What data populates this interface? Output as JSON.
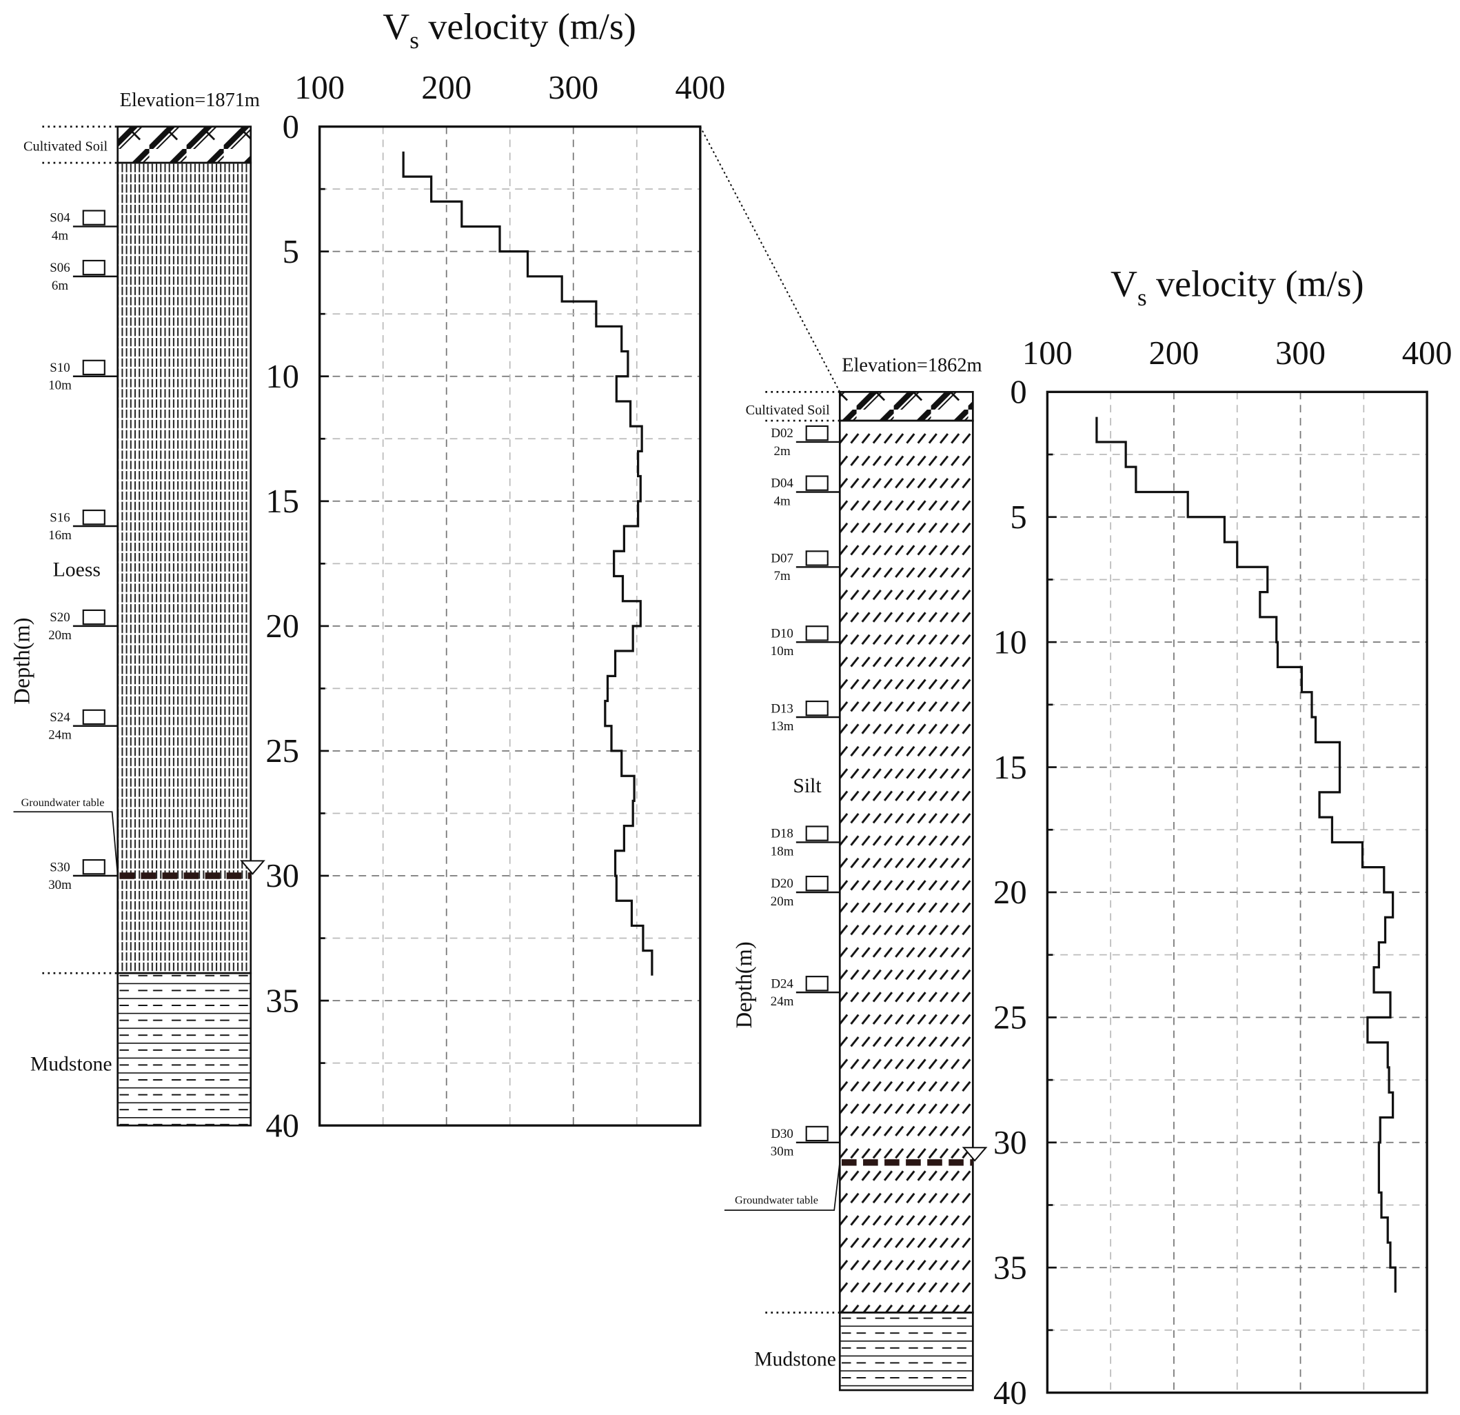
{
  "chart_data": [
    {
      "type": "line",
      "title": {
        "main": "V",
        "sub": "s",
        "rest": " velocity (m/s)"
      },
      "xlim": [
        100,
        400
      ],
      "xticks": [
        "100",
        "200",
        "300",
        "400"
      ],
      "ylim": [
        0,
        40
      ],
      "yticks": [
        "0",
        "5",
        "10",
        "15",
        "20",
        "25",
        "30",
        "35",
        "40"
      ],
      "ylabel": "Depth(m)",
      "grid": true,
      "y_inverted": true,
      "elevation": "Elevation=1871m",
      "groundwater_label": "Groundwater table",
      "groundwater_depth": 30,
      "layers": [
        {
          "name": "Cultivated Soil",
          "pattern": "cultivated",
          "top": 0,
          "bottom": 1.45
        },
        {
          "name": "Loess",
          "pattern": "loess",
          "top": 1.45,
          "bottom": 33.9
        },
        {
          "name": "Mudstone",
          "pattern": "mudstone",
          "top": 33.9,
          "bottom": 40
        }
      ],
      "samples": [
        {
          "id": "S04",
          "depth_label": "4m",
          "depth": 4
        },
        {
          "id": "S06",
          "depth_label": "6m",
          "depth": 6
        },
        {
          "id": "S10",
          "depth_label": "10m",
          "depth": 10
        },
        {
          "id": "S16",
          "depth_label": "16m",
          "depth": 16
        },
        {
          "id": "S20",
          "depth_label": "20m",
          "depth": 20
        },
        {
          "id": "S24",
          "depth_label": "24m",
          "depth": 24
        },
        {
          "id": "S30",
          "depth_label": "30m",
          "depth": 30
        }
      ],
      "segments": [
        {
          "from": 1,
          "to": 2,
          "v": 166
        },
        {
          "from": 2,
          "to": 3,
          "v": 188
        },
        {
          "from": 3,
          "to": 4,
          "v": 212
        },
        {
          "from": 4,
          "to": 5,
          "v": 242
        },
        {
          "from": 5,
          "to": 6,
          "v": 264
        },
        {
          "from": 6,
          "to": 7,
          "v": 291
        },
        {
          "from": 7,
          "to": 8,
          "v": 318
        },
        {
          "from": 8,
          "to": 9,
          "v": 338
        },
        {
          "from": 9,
          "to": 10,
          "v": 343
        },
        {
          "from": 10,
          "to": 11,
          "v": 334
        },
        {
          "from": 11,
          "to": 12,
          "v": 345
        },
        {
          "from": 12,
          "to": 13,
          "v": 354
        },
        {
          "from": 13,
          "to": 14,
          "v": 351
        },
        {
          "from": 14,
          "to": 15,
          "v": 353
        },
        {
          "from": 15,
          "to": 16,
          "v": 351
        },
        {
          "from": 16,
          "to": 17,
          "v": 340
        },
        {
          "from": 17,
          "to": 18,
          "v": 332
        },
        {
          "from": 18,
          "to": 19,
          "v": 339
        },
        {
          "from": 19,
          "to": 20,
          "v": 353
        },
        {
          "from": 20,
          "to": 21,
          "v": 347
        },
        {
          "from": 21,
          "to": 22,
          "v": 333
        },
        {
          "from": 22,
          "to": 23,
          "v": 327
        },
        {
          "from": 23,
          "to": 24,
          "v": 325
        },
        {
          "from": 24,
          "to": 25,
          "v": 330
        },
        {
          "from": 25,
          "to": 26,
          "v": 338
        },
        {
          "from": 26,
          "to": 27,
          "v": 348
        },
        {
          "from": 27,
          "to": 28,
          "v": 347
        },
        {
          "from": 28,
          "to": 29,
          "v": 340
        },
        {
          "from": 29,
          "to": 30,
          "v": 333
        },
        {
          "from": 30,
          "to": 31,
          "v": 334
        },
        {
          "from": 31,
          "to": 32,
          "v": 346
        },
        {
          "from": 32,
          "to": 33,
          "v": 355
        },
        {
          "from": 33,
          "to": 34,
          "v": 362
        }
      ]
    },
    {
      "type": "line",
      "title": {
        "main": "V",
        "sub": "s",
        "rest": " velocity (m/s)"
      },
      "xlim": [
        100,
        400
      ],
      "xticks": [
        "100",
        "200",
        "300",
        "400"
      ],
      "ylim": [
        0,
        40
      ],
      "yticks": [
        "0",
        "5",
        "10",
        "15",
        "20",
        "25",
        "30",
        "35",
        "40"
      ],
      "ylabel": "Depth(m)",
      "grid": true,
      "y_inverted": true,
      "elevation": "Elevation=1862m",
      "groundwater_label": "Groundwater table",
      "groundwater_depth": 30.8,
      "layers": [
        {
          "name": "Cultivated Soil",
          "pattern": "cultivated",
          "top": 0,
          "bottom": 1.15
        },
        {
          "name": "Silt",
          "pattern": "silt",
          "top": 1.15,
          "bottom": 36.8
        },
        {
          "name": "Mudstone",
          "pattern": "mudstone",
          "top": 36.8,
          "bottom": 39.9
        }
      ],
      "samples": [
        {
          "id": "D02",
          "depth_label": "2m",
          "depth": 2
        },
        {
          "id": "D04",
          "depth_label": "4m",
          "depth": 4
        },
        {
          "id": "D07",
          "depth_label": "7m",
          "depth": 7
        },
        {
          "id": "D10",
          "depth_label": "10m",
          "depth": 10
        },
        {
          "id": "D13",
          "depth_label": "13m",
          "depth": 13
        },
        {
          "id": "D18",
          "depth_label": "18m",
          "depth": 18
        },
        {
          "id": "D20",
          "depth_label": "20m",
          "depth": 20
        },
        {
          "id": "D24",
          "depth_label": "24m",
          "depth": 24
        },
        {
          "id": "D30",
          "depth_label": "30m",
          "depth": 30
        }
      ],
      "segments": [
        {
          "from": 1,
          "to": 2,
          "v": 139
        },
        {
          "from": 2,
          "to": 3,
          "v": 162
        },
        {
          "from": 3,
          "to": 4,
          "v": 170
        },
        {
          "from": 4,
          "to": 5,
          "v": 211
        },
        {
          "from": 5,
          "to": 6,
          "v": 240
        },
        {
          "from": 6,
          "to": 7,
          "v": 250
        },
        {
          "from": 7,
          "to": 8,
          "v": 274
        },
        {
          "from": 8,
          "to": 9,
          "v": 268
        },
        {
          "from": 9,
          "to": 10,
          "v": 281
        },
        {
          "from": 10,
          "to": 11,
          "v": 282
        },
        {
          "from": 11,
          "to": 12,
          "v": 301
        },
        {
          "from": 12,
          "to": 13,
          "v": 309
        },
        {
          "from": 13,
          "to": 14,
          "v": 312
        },
        {
          "from": 14,
          "to": 16,
          "v": 331
        },
        {
          "from": 16,
          "to": 17,
          "v": 315
        },
        {
          "from": 17,
          "to": 18,
          "v": 325
        },
        {
          "from": 18,
          "to": 19,
          "v": 349
        },
        {
          "from": 19,
          "to": 20,
          "v": 366
        },
        {
          "from": 20,
          "to": 21,
          "v": 373
        },
        {
          "from": 21,
          "to": 22,
          "v": 367
        },
        {
          "from": 22,
          "to": 23,
          "v": 362
        },
        {
          "from": 23,
          "to": 24,
          "v": 358
        },
        {
          "from": 24,
          "to": 25,
          "v": 371
        },
        {
          "from": 25,
          "to": 26,
          "v": 353
        },
        {
          "from": 26,
          "to": 27,
          "v": 369
        },
        {
          "from": 27,
          "to": 28,
          "v": 370
        },
        {
          "from": 28,
          "to": 29,
          "v": 373
        },
        {
          "from": 29,
          "to": 30,
          "v": 363
        },
        {
          "from": 30,
          "to": 32,
          "v": 362
        },
        {
          "from": 32,
          "to": 33,
          "v": 364
        },
        {
          "from": 33,
          "to": 34,
          "v": 369
        },
        {
          "from": 34,
          "to": 35,
          "v": 371
        },
        {
          "from": 35,
          "to": 36,
          "v": 375
        }
      ]
    }
  ]
}
